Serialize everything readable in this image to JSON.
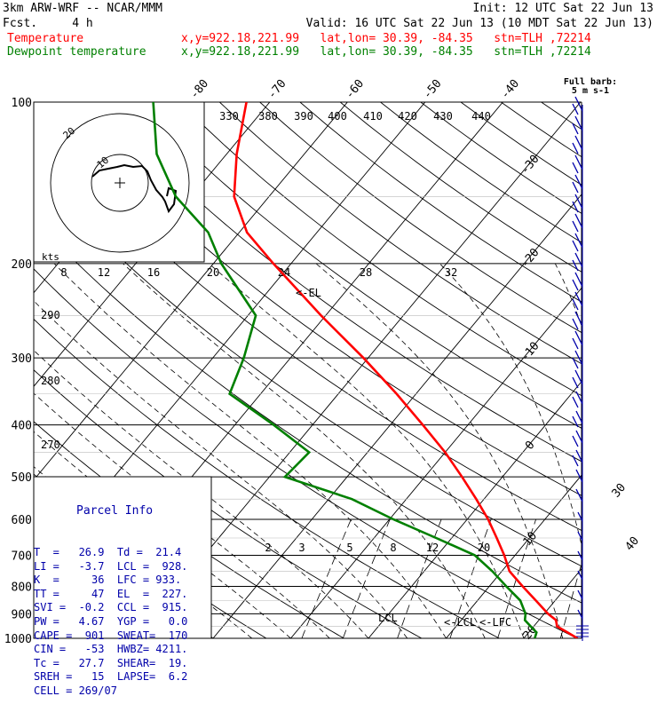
{
  "header": {
    "model": "3km ARW-WRF -- NCAR/MMM",
    "init": "Init: 12 UTC Sat 22 Jun 13",
    "fcst": "Fcst.     4 h",
    "valid": "Valid: 16 UTC Sat 22 Jun 13 (10 MDT Sat 22 Jun 13)",
    "temp_label": "Temperature",
    "temp_loc": "x,y=922.18,221.99   lat,lon= 30.39, -84.35   stn=TLH ,72214",
    "dew_label": "Dewpoint temperature",
    "dew_loc": "x,y=922.18,221.99   lat,lon= 30.39, -84.35   stn=TLH ,72214"
  },
  "colors": {
    "temperature": "#ff0000",
    "dewpoint": "#008000",
    "grid": "#000000",
    "parcel_info": "#0000aa",
    "barbs": "#0000aa",
    "hodograph": "#000000"
  },
  "chart_data": {
    "type": "line",
    "skewt": {
      "pressure_levels": [
        100,
        200,
        300,
        400,
        500,
        600,
        700,
        800,
        900,
        1000
      ],
      "pressure_labels": [
        "100",
        "200",
        "300",
        "400",
        "500",
        "600",
        "700",
        "800",
        "900",
        "1000"
      ],
      "isotherm_labels": [
        "-80",
        "-70",
        "-60",
        "-50",
        "-40",
        "-30",
        "-20",
        "-10",
        "0",
        "10",
        "20",
        "30",
        "40"
      ],
      "mixing_ratio_labels": [
        "2",
        "3",
        "5",
        "8",
        "12",
        "20"
      ],
      "theta_labels": [
        "290",
        "280",
        "270"
      ],
      "theta_e_labels": [
        "330",
        "380",
        "390",
        "400",
        "410",
        "420",
        "430",
        "440"
      ],
      "temperature_series": {
        "name": "Temperature",
        "p": [
          1000,
          975,
          950,
          925,
          900,
          850,
          800,
          750,
          700,
          650,
          600,
          550,
          500,
          450,
          400,
          350,
          300,
          250,
          200,
          175,
          150,
          125,
          100
        ],
        "t": [
          26.9,
          25.0,
          23.0,
          22.2,
          20.5,
          17.5,
          14.3,
          11.0,
          8.6,
          5.8,
          2.7,
          -1.0,
          -5.2,
          -10.0,
          -15.8,
          -22.5,
          -30.6,
          -40.6,
          -52.3,
          -59.0,
          -64.5,
          -68.7,
          -73.0
        ]
      },
      "dewpoint_series": {
        "name": "Dewpoint temperature",
        "p": [
          1000,
          975,
          950,
          925,
          900,
          850,
          800,
          750,
          700,
          650,
          600,
          550,
          500,
          450,
          400,
          350,
          300,
          250,
          200,
          175,
          150,
          125,
          100
        ],
        "td": [
          21.4,
          21.0,
          19.6,
          18.2,
          17.6,
          15.5,
          12.2,
          8.8,
          4.8,
          -2.0,
          -9.5,
          -17.0,
          -28.0,
          -27.5,
          -35.0,
          -44.0,
          -46.0,
          -49.0,
          -59.0,
          -64.0,
          -72.0,
          -79.0,
          -85.0
        ]
      },
      "annotations": [
        "<-EL",
        "LCL",
        "<-LCL",
        "<-LFC"
      ]
    },
    "hodograph": {
      "ring_labels": [
        "10",
        "20"
      ],
      "speed_axis_title": "kts",
      "speed_axis_labels": [
        "8",
        "12",
        "16",
        "20",
        "24",
        "28",
        "32"
      ]
    },
    "wind_profile": {
      "legend": "Full barb:",
      "legend_unit": "5 m s-1"
    }
  },
  "parcel_info": {
    "title": "Parcel Info",
    "rows": [
      "T  =   26.9  Td =  21.4",
      "LI =   -3.7  LCL =  928.",
      "K  =     36  LFC = 933.",
      "TT =     47  EL  =  227.",
      "SVI =  -0.2  CCL =  915.",
      "PW =   4.67  YGP =   0.0",
      "CAPE =  901  SWEAT=  170",
      "CIN =   -53  HWBZ= 4211.",
      "Tc =   27.7  SHEAR=  19.",
      "SREH =   15  LAPSE=  6.2",
      "CELL = 269/07"
    ]
  }
}
